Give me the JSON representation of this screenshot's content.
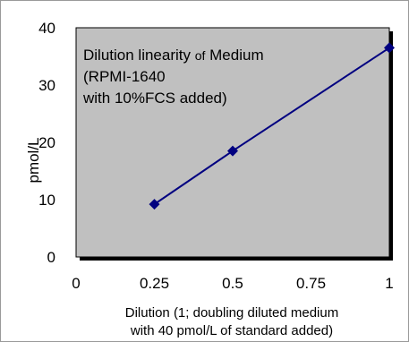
{
  "chart_data": {
    "type": "line",
    "title": {
      "line1_part1": "Dilution linearity ",
      "line1_part2": "of",
      "line1_part3": " Medium",
      "line2": "(RPMI-1640",
      "line3": "with 10%FCS added)"
    },
    "xlabel": {
      "line1": "Dilution (1; doubling diluted medium",
      "line2": "with 40 pmol/L of standard added)"
    },
    "ylabel": "pmol/L",
    "x_ticks": [
      "0",
      "0.25",
      "0.5",
      "0.75",
      "1"
    ],
    "y_ticks": [
      "0",
      "10",
      "20",
      "30",
      "40"
    ],
    "xlim": [
      0,
      1
    ],
    "ylim": [
      0,
      40
    ],
    "grid": false,
    "series": [
      {
        "x": [
          0.25,
          0.5,
          1
        ],
        "values": [
          9.2,
          18.5,
          36.5
        ]
      }
    ],
    "colors": {
      "plot_background": "#c0c0c0",
      "line": "#000080",
      "marker": "#000080",
      "frame": "#000000"
    }
  }
}
